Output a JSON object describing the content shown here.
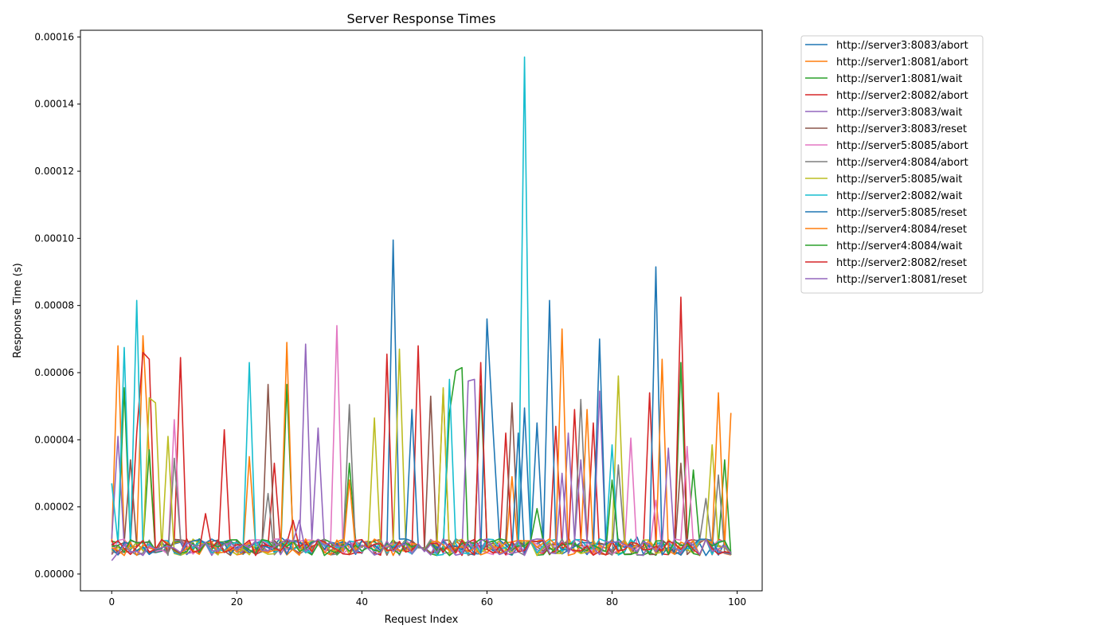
{
  "chart_data": {
    "type": "line",
    "title": "Server Response Times",
    "xlabel": "Request Index",
    "ylabel": "Response Time (s)",
    "xlim": [
      -5,
      104
    ],
    "ylim": [
      -5e-06,
      0.000162
    ],
    "xticks": [
      0,
      20,
      40,
      60,
      80,
      100
    ],
    "xtick_labels": [
      "0",
      "20",
      "40",
      "60",
      "80",
      "100"
    ],
    "yticks": [
      0,
      2e-05,
      4e-05,
      6e-05,
      8e-05,
      0.0001,
      0.00012,
      0.00014,
      0.00016
    ],
    "ytick_labels": [
      "0.00000",
      "0.00002",
      "0.00004",
      "0.00006",
      "0.00008",
      "0.00010",
      "0.00012",
      "0.00014",
      "0.00016"
    ],
    "grid": false,
    "legend_position": "outside-right",
    "series": [
      {
        "name": "http://server3:8083/abort",
        "color": "#1f77b4",
        "spikes": [
          [
            45,
            9.95e-05
          ],
          [
            66,
            4.95e-05
          ],
          [
            27,
            1.1e-05
          ],
          [
            84,
            1.1e-05
          ]
        ]
      },
      {
        "name": "http://server1:8081/abort",
        "color": "#ff7f0e",
        "spikes": [
          [
            1,
            6.8e-05
          ],
          [
            5,
            7.1e-05
          ],
          [
            6,
            3.5e-05
          ],
          [
            22,
            3.5e-05
          ],
          [
            53,
            5.5e-05
          ],
          [
            64,
            2.9e-05
          ],
          [
            73,
            1.1e-05
          ]
        ]
      },
      {
        "name": "http://server1:8081/wait",
        "color": "#2ca02c",
        "spikes": [
          [
            2,
            5.55e-05
          ],
          [
            6,
            3.7e-05
          ],
          [
            28,
            5.65e-05
          ],
          [
            38,
            3.3e-05
          ],
          [
            54,
            4.8e-05
          ],
          [
            55,
            6.05e-05
          ],
          [
            56,
            6.15e-05
          ],
          [
            59,
            5.6e-05
          ],
          [
            91,
            6.3e-05
          ],
          [
            93,
            3.1e-05
          ],
          [
            98,
            3.4e-05
          ]
        ]
      },
      {
        "name": "http://server2:8082/abort",
        "color": "#d62728",
        "spikes": [
          [
            4,
            4.2e-05
          ],
          [
            5,
            6.6e-05
          ],
          [
            6,
            6.4e-05
          ],
          [
            11,
            6.45e-05
          ],
          [
            18,
            4.3e-05
          ],
          [
            26,
            3.3e-05
          ],
          [
            44,
            6.55e-05
          ],
          [
            49,
            6.8e-05
          ],
          [
            63,
            4.2e-05
          ],
          [
            71,
            4.4e-05
          ],
          [
            74,
            4.9e-05
          ],
          [
            77,
            4.5e-05
          ],
          [
            86,
            5.4e-05
          ],
          [
            91,
            8.25e-05
          ]
        ]
      },
      {
        "name": "http://server3:8083/wait",
        "color": "#9467bd",
        "spikes": [
          [
            1,
            4.1e-05
          ],
          [
            31,
            6.85e-05
          ],
          [
            33,
            4.35e-05
          ],
          [
            57,
            5.75e-05
          ],
          [
            58,
            5.8e-05
          ],
          [
            73,
            4.2e-05
          ],
          [
            78,
            5.45e-05
          ]
        ]
      },
      {
        "name": "http://server3:8083/reset",
        "color": "#8c564b",
        "spikes": [
          [
            3,
            3.4e-05
          ],
          [
            25,
            5.65e-05
          ],
          [
            51,
            5.3e-05
          ],
          [
            64,
            5.1e-05
          ],
          [
            91,
            3.3e-05
          ]
        ]
      },
      {
        "name": "http://server5:8085/abort",
        "color": "#e377c2",
        "spikes": [
          [
            10,
            4.6e-05
          ],
          [
            36,
            7.4e-05
          ],
          [
            83,
            4.05e-05
          ],
          [
            87,
            2.2e-05
          ],
          [
            92,
            3.8e-05
          ]
        ]
      },
      {
        "name": "http://server4:8084/abort",
        "color": "#7f7f7f",
        "spikes": [
          [
            10,
            3.45e-05
          ],
          [
            25,
            2.4e-05
          ],
          [
            38,
            5.05e-05
          ],
          [
            75,
            5.2e-05
          ],
          [
            81,
            3.25e-05
          ],
          [
            95,
            2.25e-05
          ],
          [
            97,
            2.95e-05
          ]
        ]
      },
      {
        "name": "http://server5:8085/wait",
        "color": "#bcbd22",
        "spikes": [
          [
            6,
            5.25e-05
          ],
          [
            7,
            5.1e-05
          ],
          [
            9,
            4.1e-05
          ],
          [
            42,
            4.65e-05
          ],
          [
            46,
            6.7e-05
          ],
          [
            53,
            5.55e-05
          ],
          [
            81,
            5.9e-05
          ],
          [
            96,
            3.85e-05
          ]
        ]
      },
      {
        "name": "http://server2:8082/wait",
        "color": "#17becf",
        "spikes": [
          [
            0,
            2.7e-05
          ],
          [
            2,
            6.75e-05
          ],
          [
            4,
            8.15e-05
          ],
          [
            22,
            6.3e-05
          ],
          [
            54,
            5.8e-05
          ],
          [
            66,
            0.000154
          ],
          [
            80,
            3.85e-05
          ]
        ]
      },
      {
        "name": "http://server5:8085/reset",
        "color": "#1f77b4",
        "spikes": [
          [
            48,
            4.9e-05
          ],
          [
            60,
            7.6e-05
          ],
          [
            61,
            4.2e-05
          ],
          [
            65,
            4.2e-05
          ],
          [
            68,
            4.5e-05
          ],
          [
            70,
            8.15e-05
          ],
          [
            78,
            7e-05
          ],
          [
            87,
            9.15e-05
          ]
        ]
      },
      {
        "name": "http://server4:8084/reset",
        "color": "#ff7f0e",
        "spikes": [
          [
            28,
            6.9e-05
          ],
          [
            38,
            2.8e-05
          ],
          [
            72,
            7.3e-05
          ],
          [
            76,
            4.9e-05
          ],
          [
            88,
            6.4e-05
          ],
          [
            97,
            5.4e-05
          ],
          [
            99,
            4.8e-05
          ]
        ]
      },
      {
        "name": "http://server4:8084/wait",
        "color": "#2ca02c",
        "spikes": [
          [
            68,
            1.95e-05
          ],
          [
            80,
            2.8e-05
          ]
        ]
      },
      {
        "name": "http://server2:8082/reset",
        "color": "#d62728",
        "spikes": [
          [
            15,
            1.8e-05
          ],
          [
            29,
            1.6e-05
          ],
          [
            59,
            6.3e-05
          ]
        ]
      },
      {
        "name": "http://server1:8081/reset",
        "color": "#9467bd",
        "spikes": [
          [
            0,
            4e-06
          ],
          [
            30,
            1.6e-05
          ],
          [
            72,
            3e-05
          ],
          [
            75,
            3.4e-05
          ],
          [
            89,
            3.75e-05
          ]
        ]
      }
    ]
  }
}
